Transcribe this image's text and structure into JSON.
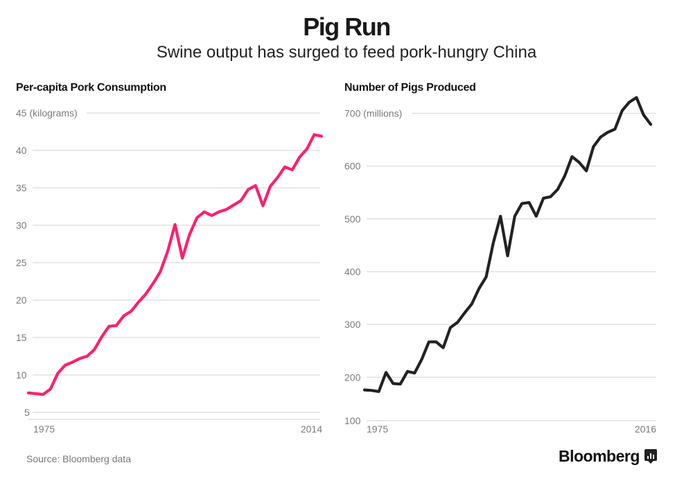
{
  "header": {
    "title": "Pig Run",
    "subtitle": "Swine output has surged to feed pork-hungry China"
  },
  "footer": {
    "source": "Source: Bloomberg data",
    "logo": "Bloomberg",
    "logo_icon": "bar-chart-speech-bubble-icon"
  },
  "colors": {
    "consumption_line": "#ff1f6b",
    "pigs_line": "#222222",
    "gridline": "#dcdcdc",
    "tick_text": "#7a7a7a"
  },
  "chart_data": [
    {
      "type": "line",
      "title": "Per-capita Pork Consumption",
      "ylabel": "kilograms",
      "unit_label": "(kilograms)",
      "ylim": [
        5,
        45
      ],
      "yticks": [
        5,
        10,
        15,
        20,
        25,
        30,
        35,
        40,
        45
      ],
      "ytick_labels": [
        "5",
        "10",
        "15",
        "20",
        "25",
        "30",
        "35",
        "40",
        "45"
      ],
      "x_start_label": "1975",
      "x_end_label": "2014",
      "grid": true,
      "series": [
        {
          "name": "Per-capita pork consumption",
          "values": [
            7.6,
            7.5,
            7.4,
            8.1,
            10.2,
            11.3,
            11.7,
            12.2,
            12.5,
            13.4,
            15.1,
            16.5,
            16.6,
            17.9,
            18.5,
            19.7,
            20.8,
            22.2,
            23.8,
            26.5,
            30.1,
            25.6,
            28.8,
            31.0,
            31.8,
            31.3,
            31.8,
            32.1,
            32.7,
            33.3,
            34.8,
            35.3,
            32.6,
            35.2,
            36.4,
            37.8,
            37.4,
            39.1,
            40.2,
            42.1,
            41.9
          ]
        }
      ]
    },
    {
      "type": "line",
      "title": "Number of Pigs Produced",
      "ylabel": "millions",
      "unit_label": "(millions)",
      "ylim": [
        100,
        700
      ],
      "yticks": [
        100,
        200,
        300,
        400,
        500,
        600,
        700
      ],
      "ytick_labels": [
        "100",
        "200",
        "300",
        "400",
        "500",
        "600",
        "700"
      ],
      "x_start_label": "1975",
      "x_end_label": "2016",
      "grid": true,
      "series": [
        {
          "name": "Pigs produced",
          "values": [
            176,
            175,
            173,
            209,
            188,
            187,
            211,
            208,
            234,
            267,
            267,
            256,
            294,
            304,
            322,
            339,
            368,
            390,
            455,
            505,
            430,
            505,
            529,
            531,
            505,
            539,
            542,
            556,
            582,
            618,
            607,
            591,
            637,
            655,
            664,
            670,
            705,
            721,
            730,
            697,
            679
          ]
        }
      ]
    }
  ]
}
